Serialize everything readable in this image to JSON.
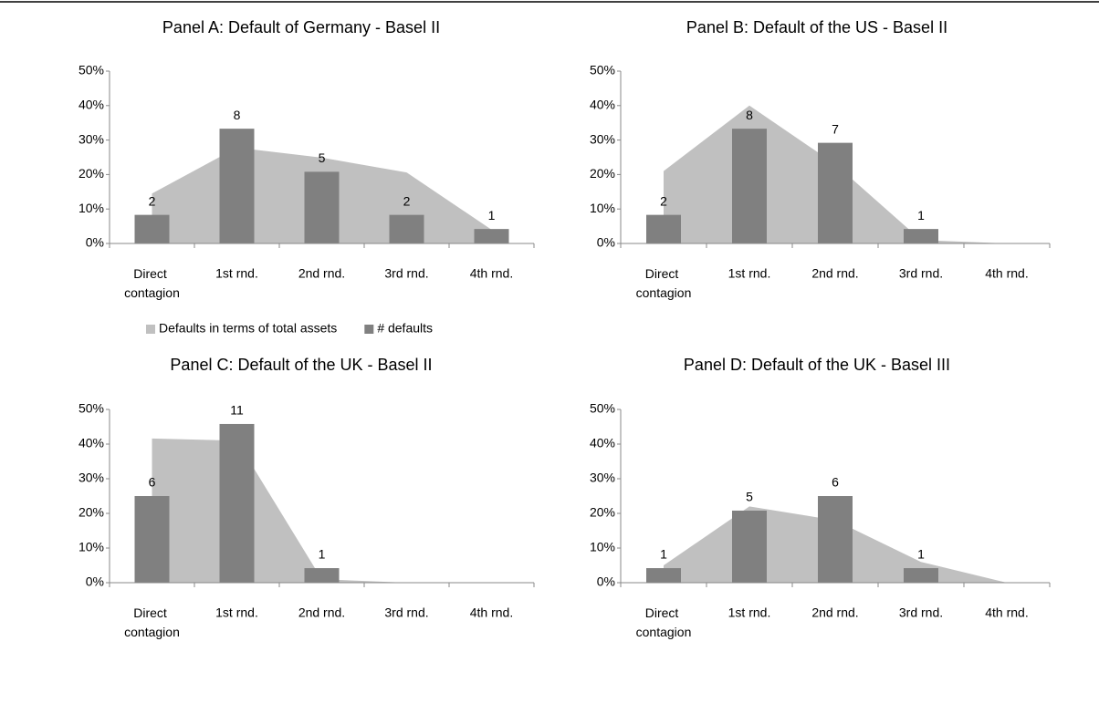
{
  "chart_data": [
    {
      "type": "bar",
      "title": "Panel A: Default of Germany - Basel II",
      "categories": [
        "Direct contagion",
        "1st rnd.",
        "2nd rnd.",
        "3rd rnd.",
        "4th rnd."
      ],
      "series": [
        {
          "name": "Defaults in terms of total assets",
          "type": "area",
          "color": "#c0c0c0",
          "values": [
            14.5,
            27.8,
            24.9,
            20.6,
            4
          ]
        },
        {
          "name": "# defaults",
          "type": "bar",
          "color": "#808080",
          "values": [
            8.3,
            33.3,
            20.8,
            8.3,
            4.2
          ],
          "data_labels": [
            2,
            8,
            5,
            2,
            1
          ]
        }
      ],
      "ylim": [
        0,
        50
      ],
      "yticks": [
        {
          "value": 0,
          "label": "0%"
        },
        {
          "value": 10,
          "label": "10%"
        },
        {
          "value": 20,
          "label": "20%"
        },
        {
          "value": 30,
          "label": "30%"
        },
        {
          "value": 40,
          "label": "40%"
        },
        {
          "value": 50,
          "label": "50%"
        }
      ],
      "legend": "bottom"
    },
    {
      "type": "bar",
      "title": "Panel B: Default of the US - Basel II",
      "categories": [
        "Direct contagion",
        "1st rnd.",
        "2nd rnd.",
        "3rd rnd.",
        "4th rnd."
      ],
      "series": [
        {
          "type": "area",
          "color": "#c0c0c0",
          "values": [
            21,
            40,
            23,
            1,
            0
          ]
        },
        {
          "type": "bar",
          "color": "#808080",
          "values": [
            8.3,
            33.3,
            29.2,
            4.2,
            null
          ],
          "data_labels": [
            2,
            8,
            7,
            1,
            null
          ]
        }
      ],
      "ylim": [
        0,
        50
      ],
      "yticks": [
        {
          "value": 0,
          "label": "0%"
        },
        {
          "value": 10,
          "label": "10%"
        },
        {
          "value": 20,
          "label": "20%"
        },
        {
          "value": 30,
          "label": "30%"
        },
        {
          "value": 40,
          "label": "40%"
        },
        {
          "value": 50,
          "label": "50%"
        }
      ]
    },
    {
      "type": "bar",
      "title": "Panel C: Default of the UK - Basel II",
      "categories": [
        "Direct contagion",
        "1st rnd.",
        "2nd rnd.",
        "3rd rnd.",
        "4th rnd."
      ],
      "series": [
        {
          "type": "area",
          "color": "#c0c0c0",
          "values": [
            41.6,
            41,
            1,
            0,
            0
          ]
        },
        {
          "type": "bar",
          "color": "#808080",
          "values": [
            25,
            45.8,
            4.2,
            null,
            null
          ],
          "data_labels": [
            6,
            11,
            1,
            null,
            null
          ]
        }
      ],
      "ylim": [
        0,
        50
      ],
      "yticks": [
        {
          "value": 0,
          "label": "0%"
        },
        {
          "value": 10,
          "label": "10%"
        },
        {
          "value": 20,
          "label": "20%"
        },
        {
          "value": 30,
          "label": "30%"
        },
        {
          "value": 40,
          "label": "40%"
        },
        {
          "value": 50,
          "label": "50%"
        }
      ]
    },
    {
      "type": "bar",
      "title": "Panel D: Default of the UK - Basel III",
      "categories": [
        "Direct contagion",
        "1st rnd.",
        "2nd rnd.",
        "3rd rnd.",
        "4th rnd."
      ],
      "series": [
        {
          "type": "area",
          "color": "#c0c0c0",
          "values": [
            5,
            22,
            18,
            6,
            0
          ]
        },
        {
          "type": "bar",
          "color": "#808080",
          "values": [
            4.2,
            20.8,
            25,
            4.2,
            null
          ],
          "data_labels": [
            1,
            5,
            6,
            1,
            null
          ]
        }
      ],
      "ylim": [
        0,
        50
      ],
      "yticks": [
        {
          "value": 0,
          "label": "0%"
        },
        {
          "value": 10,
          "label": "10%"
        },
        {
          "value": 20,
          "label": "20%"
        },
        {
          "value": 30,
          "label": "30%"
        },
        {
          "value": 40,
          "label": "40%"
        },
        {
          "value": 50,
          "label": "50%"
        }
      ]
    }
  ]
}
